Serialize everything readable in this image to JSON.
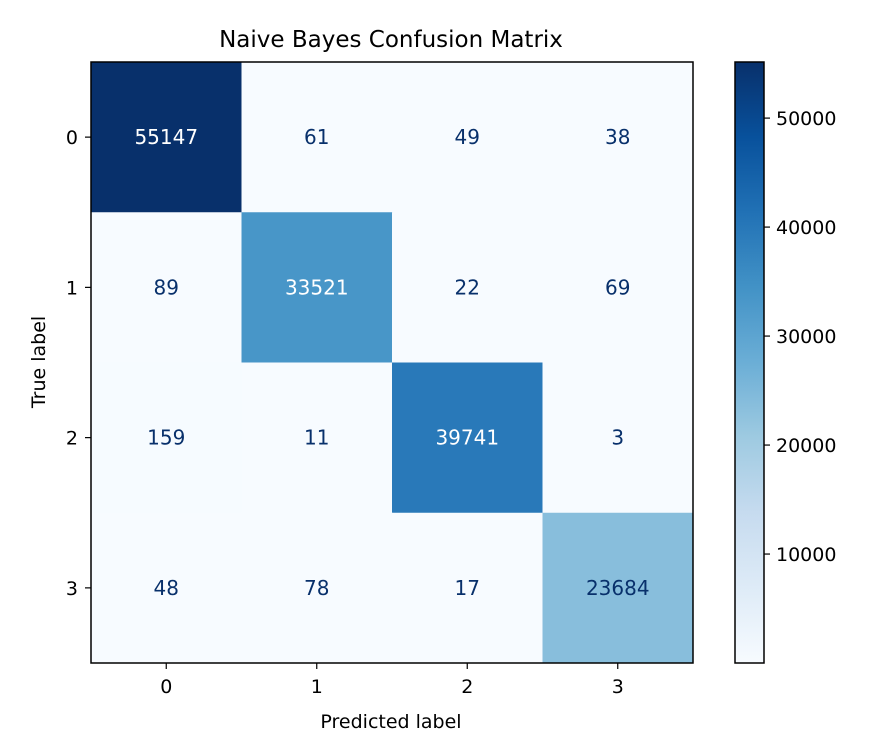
{
  "chart_data": {
    "type": "heatmap",
    "title": "Naive Bayes Confusion Matrix",
    "xlabel": "Predicted label",
    "ylabel": "True label",
    "x_categories": [
      "0",
      "1",
      "2",
      "3"
    ],
    "y_categories": [
      "0",
      "1",
      "2",
      "3"
    ],
    "matrix": [
      [
        55147,
        61,
        49,
        38
      ],
      [
        89,
        33521,
        22,
        69
      ],
      [
        159,
        11,
        39741,
        3
      ],
      [
        48,
        78,
        17,
        23684
      ]
    ],
    "colormap": "Blues",
    "colorbar": {
      "range": [
        3,
        55147
      ],
      "ticks": [
        10000,
        20000,
        30000,
        40000,
        50000
      ],
      "tick_labels": [
        "10000",
        "20000",
        "30000",
        "40000",
        "50000"
      ]
    },
    "text_colors": {
      "dark_cell": "#ffffff",
      "light_cell": "#08306b"
    }
  }
}
